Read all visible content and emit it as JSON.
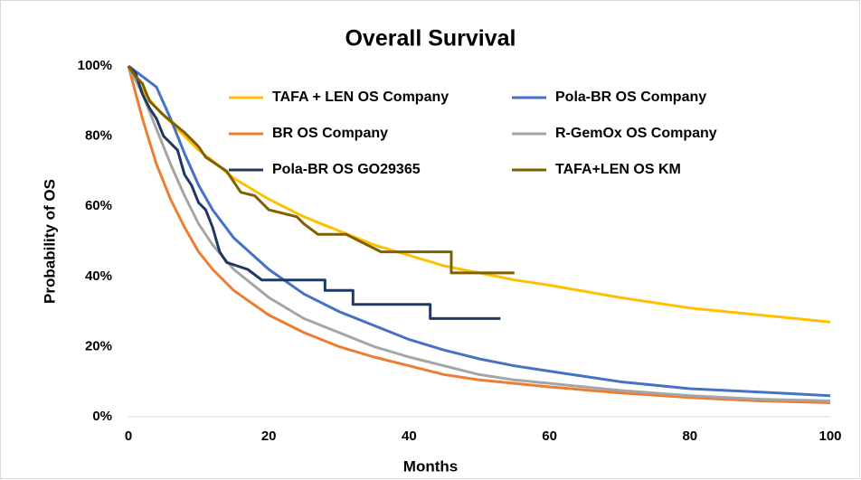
{
  "chart_data": {
    "type": "line",
    "title": "Overall Survival",
    "x_label": "Months",
    "y_label": "Probability of OS",
    "xlim": [
      0,
      100
    ],
    "xticks": [
      0,
      20,
      40,
      60,
      80,
      100
    ],
    "ylim": [
      0,
      100
    ],
    "yticks": [
      {
        "value": 0,
        "label": "0%"
      },
      {
        "value": 20,
        "label": "20%"
      },
      {
        "value": 40,
        "label": "40%"
      },
      {
        "value": 60,
        "label": "60%"
      },
      {
        "value": 80,
        "label": "80%"
      },
      {
        "value": 100,
        "label": "100%"
      }
    ],
    "grid": false,
    "series": [
      {
        "name": "TAFA + LEN OS Company",
        "color": "#ffc000",
        "x": [
          0,
          2,
          4,
          6,
          8,
          10,
          12,
          15,
          20,
          25,
          30,
          35,
          40,
          45,
          50,
          55,
          60,
          70,
          80,
          90,
          100
        ],
        "values": [
          100,
          93,
          88,
          84,
          80,
          76,
          73,
          68,
          62,
          57,
          53,
          49,
          46,
          43,
          41,
          39,
          37.5,
          34,
          31,
          29,
          27
        ]
      },
      {
        "name": "Pola-BR OS Company",
        "color": "#4472c4",
        "x": [
          0,
          2,
          4,
          6,
          8,
          10,
          12,
          15,
          20,
          25,
          30,
          35,
          40,
          45,
          50,
          55,
          60,
          70,
          80,
          90,
          100
        ],
        "values": [
          100,
          97,
          94,
          85,
          75,
          66,
          59,
          51,
          42,
          35,
          30,
          26,
          22,
          19,
          16.5,
          14.5,
          13,
          10,
          8,
          7,
          6
        ]
      },
      {
        "name": "BR OS Company",
        "color": "#ed7d31",
        "x": [
          0,
          2,
          4,
          6,
          8,
          10,
          12,
          15,
          20,
          25,
          30,
          35,
          40,
          45,
          50,
          55,
          60,
          70,
          80,
          90,
          100
        ],
        "values": [
          100,
          85,
          72,
          62,
          54,
          47,
          42,
          36,
          29,
          24,
          20,
          17,
          14.5,
          12,
          10.5,
          9.5,
          8.5,
          6.8,
          5.5,
          4.5,
          4
        ]
      },
      {
        "name": "R-GemOx OS Company",
        "color": "#a5a5a5",
        "x": [
          0,
          2,
          4,
          6,
          8,
          10,
          12,
          15,
          20,
          25,
          30,
          35,
          40,
          45,
          50,
          55,
          60,
          70,
          80,
          90,
          100
        ],
        "values": [
          100,
          92,
          82,
          72,
          63,
          55,
          49,
          42,
          34,
          28,
          24,
          20,
          17,
          14.5,
          12,
          10.5,
          9.5,
          7.5,
          6,
          5,
          4.5
        ]
      },
      {
        "name": "Pola-BR OS GO29365",
        "color": "#1f3864",
        "x": [
          0,
          1,
          2,
          3,
          4,
          5,
          7,
          8,
          9,
          10,
          11,
          12,
          13,
          14,
          17,
          19,
          28,
          28,
          32,
          32,
          43,
          43,
          53
        ],
        "values": [
          100,
          98,
          92,
          88,
          85,
          80,
          76,
          69,
          66,
          61,
          59,
          54,
          47,
          44,
          42,
          39,
          39,
          36,
          36,
          32,
          32,
          28,
          28
        ]
      },
      {
        "name": "TAFA+LEN OS KM",
        "color": "#7f6000",
        "x": [
          0,
          1,
          2,
          3,
          5,
          8,
          10,
          11,
          14,
          16,
          18,
          20,
          24,
          25,
          27,
          31,
          33,
          36,
          39,
          46,
          46,
          55
        ],
        "values": [
          100,
          97,
          95,
          90,
          86,
          81,
          77,
          74,
          70,
          64,
          63,
          59,
          57,
          55,
          52,
          52,
          50,
          47,
          47,
          47,
          41,
          41
        ]
      }
    ]
  }
}
